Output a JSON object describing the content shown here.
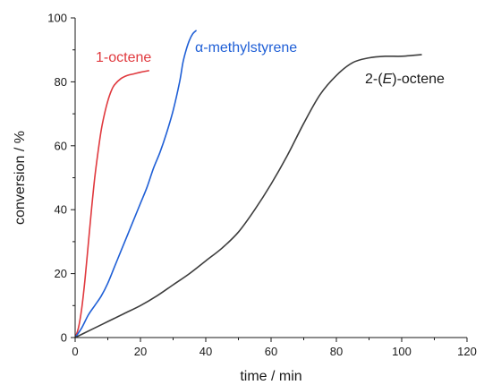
{
  "chart_data": {
    "type": "line",
    "xlabel": "time / min",
    "ylabel": "conversion / %",
    "xlim": [
      0,
      120
    ],
    "ylim": [
      0,
      100
    ],
    "x_ticks": [
      0,
      20,
      40,
      60,
      80,
      100,
      120
    ],
    "y_ticks": [
      0,
      20,
      40,
      60,
      80,
      100
    ],
    "grid": false,
    "legend": "inline labels",
    "series": [
      {
        "name": "1-octene",
        "color": "#e0393e",
        "x": [
          0,
          1,
          2,
          3,
          4,
          5,
          6,
          7,
          8,
          9,
          10,
          11,
          12,
          14,
          16,
          18,
          20,
          22.5
        ],
        "y": [
          0,
          3,
          9,
          18,
          29,
          40,
          50,
          58,
          65,
          70,
          74,
          77,
          79,
          81,
          82,
          82.5,
          83,
          83.5
        ]
      },
      {
        "name": "α-methylstyrene",
        "color": "#1f5fd6",
        "x": [
          0,
          2,
          4,
          6,
          8,
          10,
          12,
          14,
          16,
          18,
          20,
          22,
          24,
          26,
          28,
          30,
          32,
          33,
          34,
          35,
          36,
          37
        ],
        "y": [
          0,
          3,
          7,
          10,
          13,
          17,
          22,
          27,
          32,
          37,
          42,
          47,
          53,
          58,
          64,
          71,
          80,
          86,
          90,
          93,
          95,
          96
        ]
      },
      {
        "name": "2-(E)-octene",
        "color": "#3d3d3d",
        "x": [
          0,
          5,
          10,
          15,
          20,
          25,
          30,
          35,
          40,
          45,
          50,
          55,
          60,
          65,
          70,
          75,
          80,
          85,
          90,
          95,
          100,
          106
        ],
        "y": [
          0,
          2.5,
          5,
          7.5,
          10,
          13,
          16.5,
          20,
          24,
          28,
          33,
          40,
          48,
          57,
          67,
          76,
          82,
          86,
          87.5,
          88,
          88,
          88.5
        ]
      }
    ]
  }
}
